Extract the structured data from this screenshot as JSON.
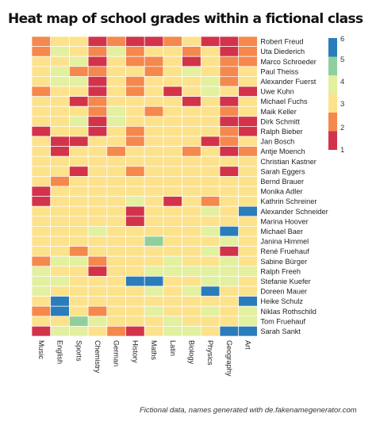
{
  "title": "Heat map of school grades within a fictional class",
  "caption": "Fictional data, names generated with de.fakenamegenerator.com",
  "chart_data": {
    "type": "heatmap",
    "title": "Heat map of school grades within a fictional class",
    "subjects": [
      "Music",
      "English",
      "Sports",
      "Chemistry",
      "German",
      "History",
      "Maths",
      "Latin",
      "Biology",
      "Physics",
      "Geography",
      "Art"
    ],
    "students": [
      "Robert Freud",
      "Uta Diederich",
      "Marco Schroeder",
      "Paul Theiss",
      "Alexander Fuerst",
      "Uwe Kuhn",
      "Michael Fuchs",
      "Maik Keller",
      "Dirk Schmitt",
      "Ralph Bieber",
      "Jan Bosch",
      "Antje Moench",
      "Christian Kastner",
      "Sarah Eggers",
      "Bernd Brauer",
      "Monika Adler",
      "Kathrin Schreiner",
      "Alexander Schneider",
      "Marina Hoover",
      "Michael Baer",
      "Janina Himmel",
      "René Fruehauf",
      "Sabine Bürger",
      "Ralph Freeh",
      "Stefanie Kuefer",
      "Doreen Mauer",
      "Heike Schulz",
      "Niklas Rothschild",
      "Tom Fruehauf",
      "Sarah Sankt"
    ],
    "grades": [
      [
        2,
        3,
        3,
        1,
        2,
        1,
        1,
        2,
        3,
        1,
        1,
        2
      ],
      [
        2,
        4,
        3,
        2,
        4,
        2,
        3,
        3,
        2,
        3,
        1,
        2
      ],
      [
        3,
        3,
        4,
        1,
        3,
        2,
        2,
        3,
        1,
        3,
        2,
        2
      ],
      [
        3,
        4,
        2,
        2,
        3,
        3,
        2,
        3,
        4,
        3,
        2,
        3
      ],
      [
        3,
        4,
        4,
        1,
        3,
        2,
        3,
        3,
        3,
        4,
        2,
        3
      ],
      [
        2,
        3,
        3,
        1,
        3,
        2,
        3,
        1,
        3,
        4,
        3,
        1
      ],
      [
        3,
        3,
        1,
        2,
        3,
        3,
        3,
        3,
        1,
        3,
        1,
        3
      ],
      [
        3,
        3,
        3,
        2,
        4,
        3,
        2,
        3,
        3,
        3,
        2,
        3
      ],
      [
        3,
        3,
        4,
        1,
        4,
        3,
        3,
        3,
        3,
        3,
        1,
        1
      ],
      [
        1,
        3,
        3,
        1,
        3,
        2,
        3,
        3,
        3,
        3,
        2,
        1
      ],
      [
        3,
        1,
        1,
        3,
        3,
        2,
        3,
        3,
        3,
        1,
        2,
        3
      ],
      [
        3,
        1,
        3,
        3,
        2,
        3,
        3,
        3,
        2,
        3,
        1,
        2
      ],
      [
        3,
        3,
        3,
        3,
        3,
        3,
        3,
        3,
        3,
        3,
        3,
        3
      ],
      [
        3,
        3,
        1,
        3,
        3,
        2,
        3,
        3,
        3,
        3,
        1,
        3
      ],
      [
        3,
        2,
        3,
        3,
        3,
        3,
        3,
        3,
        3,
        3,
        3,
        3
      ],
      [
        1,
        3,
        3,
        3,
        3,
        3,
        3,
        3,
        3,
        3,
        3,
        3
      ],
      [
        1,
        3,
        3,
        3,
        3,
        4,
        3,
        1,
        3,
        2,
        3,
        3
      ],
      [
        3,
        3,
        3,
        3,
        3,
        1,
        3,
        3,
        3,
        4,
        3,
        6
      ],
      [
        3,
        3,
        3,
        3,
        3,
        1,
        3,
        3,
        3,
        3,
        3,
        3
      ],
      [
        3,
        3,
        3,
        4,
        3,
        3,
        3,
        3,
        3,
        4,
        6,
        3
      ],
      [
        3,
        3,
        3,
        3,
        3,
        3,
        5,
        3,
        3,
        3,
        4,
        3
      ],
      [
        3,
        3,
        2,
        3,
        3,
        3,
        3,
        3,
        3,
        4,
        1,
        3
      ],
      [
        2,
        4,
        4,
        2,
        3,
        3,
        3,
        4,
        3,
        3,
        4,
        3
      ],
      [
        4,
        3,
        3,
        1,
        3,
        3,
        4,
        4,
        4,
        4,
        4,
        4
      ],
      [
        4,
        4,
        3,
        3,
        3,
        6,
        6,
        3,
        3,
        4,
        4,
        3
      ],
      [
        4,
        3,
        3,
        3,
        3,
        3,
        4,
        3,
        4,
        6,
        3,
        3
      ],
      [
        3,
        6,
        3,
        3,
        3,
        3,
        3,
        3,
        3,
        3,
        3,
        6
      ],
      [
        2,
        6,
        3,
        2,
        3,
        3,
        4,
        3,
        3,
        4,
        3,
        4
      ],
      [
        3,
        3,
        5,
        4,
        3,
        3,
        3,
        4,
        3,
        3,
        3,
        4
      ],
      [
        1,
        4,
        4,
        3,
        2,
        1,
        3,
        4,
        4,
        3,
        6,
        6
      ]
    ],
    "legend": {
      "position": "right",
      "ticks": [
        6,
        5,
        4,
        3,
        2,
        1
      ],
      "colors": [
        "#2b7cba",
        "#8fcf9e",
        "#e2f0a0",
        "#fde28c",
        "#f5884d",
        "#d2334b"
      ]
    },
    "colors": {
      "1": "#d2334b",
      "2": "#f5884d",
      "3": "#fde28c",
      "4": "#e2f0a0",
      "5": "#8fcf9e",
      "6": "#2b7cba"
    }
  }
}
